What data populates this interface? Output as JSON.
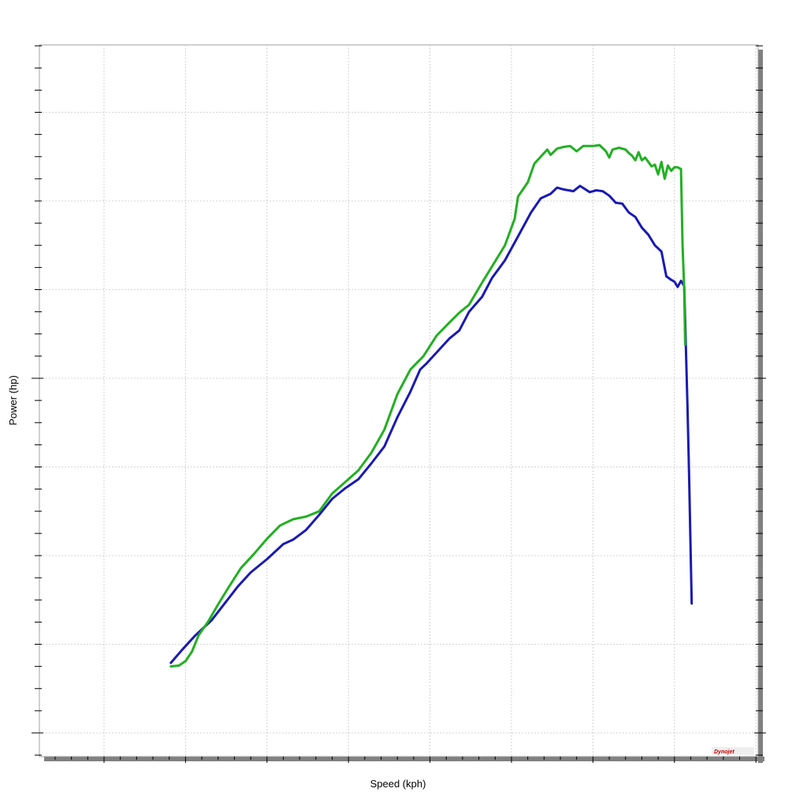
{
  "chart_data": {
    "type": "line",
    "title": "",
    "xlabel": "Speed (kph)",
    "ylabel": "Power (hp)",
    "xlim": [
      0,
      200
    ],
    "ylim": [
      0,
      80
    ],
    "grid": true,
    "x_major_step": 25,
    "y_major_step": 10,
    "x_minor_step": 5,
    "y_minor_step": 2.5,
    "tick_labels_visible": false,
    "logo_text": "Dynojet",
    "series": [
      {
        "color": "#1a1ab4",
        "points": [
          [
            20.5,
            7.9
          ],
          [
            24,
            9.4
          ],
          [
            28,
            11.0
          ],
          [
            33,
            12.7
          ],
          [
            37,
            14.6
          ],
          [
            41,
            16.5
          ],
          [
            45,
            18.1
          ],
          [
            50,
            19.6
          ],
          [
            55,
            21.3
          ],
          [
            58,
            21.8
          ],
          [
            62,
            22.9
          ],
          [
            66,
            24.6
          ],
          [
            70,
            26.4
          ],
          [
            74,
            27.6
          ],
          [
            78,
            28.6
          ],
          [
            82,
            30.4
          ],
          [
            86,
            32.3
          ],
          [
            90,
            35.6
          ],
          [
            94,
            38.5
          ],
          [
            97,
            41.0
          ],
          [
            99,
            41.7
          ],
          [
            102,
            42.9
          ],
          [
            106,
            44.5
          ],
          [
            109,
            45.4
          ],
          [
            112,
            47.5
          ],
          [
            116,
            49.2
          ],
          [
            119,
            51.3
          ],
          [
            123,
            53.3
          ],
          [
            127,
            56.0
          ],
          [
            131,
            58.7
          ],
          [
            134,
            60.3
          ],
          [
            137,
            60.8
          ],
          [
            139,
            61.5
          ],
          [
            141,
            61.3
          ],
          [
            144,
            61.1
          ],
          [
            146,
            61.7
          ],
          [
            149,
            61.0
          ],
          [
            151,
            61.2
          ],
          [
            153,
            61.1
          ],
          [
            155,
            60.6
          ],
          [
            157,
            59.8
          ],
          [
            159,
            59.7
          ],
          [
            161,
            58.7
          ],
          [
            163,
            58.2
          ],
          [
            165,
            57.0
          ],
          [
            167,
            56.2
          ],
          [
            169,
            55.0
          ],
          [
            171,
            54.3
          ],
          [
            172.5,
            51.5
          ],
          [
            174,
            51.1
          ],
          [
            175,
            50.9
          ],
          [
            176,
            50.3
          ],
          [
            177,
            51.0
          ],
          [
            178,
            50.4
          ],
          [
            179,
            37.0
          ],
          [
            179.5,
            29.0
          ],
          [
            180.3,
            14.6
          ]
        ]
      },
      {
        "color": "#22b022",
        "points": [
          [
            20.5,
            7.5
          ],
          [
            23,
            7.6
          ],
          [
            25,
            8.1
          ],
          [
            27,
            9.2
          ],
          [
            29,
            11.0
          ],
          [
            32,
            12.6
          ],
          [
            35,
            14.5
          ],
          [
            38,
            16.3
          ],
          [
            42,
            18.6
          ],
          [
            46,
            20.2
          ],
          [
            50,
            21.9
          ],
          [
            54,
            23.4
          ],
          [
            58,
            24.1
          ],
          [
            62,
            24.4
          ],
          [
            66,
            25.0
          ],
          [
            70,
            27.0
          ],
          [
            74,
            28.3
          ],
          [
            78,
            29.6
          ],
          [
            82,
            31.6
          ],
          [
            86,
            34.2
          ],
          [
            90,
            38.2
          ],
          [
            94,
            41.0
          ],
          [
            98,
            42.5
          ],
          [
            102,
            44.8
          ],
          [
            106,
            46.3
          ],
          [
            109,
            47.4
          ],
          [
            112,
            48.3
          ],
          [
            116,
            50.8
          ],
          [
            119,
            52.6
          ],
          [
            123,
            55.0
          ],
          [
            126,
            58.0
          ],
          [
            127,
            60.5
          ],
          [
            130,
            62.1
          ],
          [
            132,
            64.2
          ],
          [
            134,
            65.0
          ],
          [
            136,
            65.8
          ],
          [
            137,
            65.2
          ],
          [
            139,
            65.9
          ],
          [
            141,
            66.1
          ],
          [
            143,
            66.2
          ],
          [
            145,
            65.6
          ],
          [
            147,
            66.2
          ],
          [
            150,
            66.2
          ],
          [
            152,
            66.3
          ],
          [
            154,
            65.6
          ],
          [
            155,
            64.9
          ],
          [
            156,
            65.8
          ],
          [
            158,
            66.0
          ],
          [
            160,
            65.8
          ],
          [
            161,
            65.4
          ],
          [
            162,
            65.1
          ],
          [
            163,
            64.6
          ],
          [
            164,
            65.5
          ],
          [
            165,
            64.6
          ],
          [
            166,
            64.9
          ],
          [
            167,
            64.4
          ],
          [
            168,
            63.9
          ],
          [
            169,
            64.1
          ],
          [
            170,
            63.0
          ],
          [
            171,
            64.4
          ],
          [
            172,
            62.5
          ],
          [
            173,
            64.0
          ],
          [
            174,
            63.4
          ],
          [
            175,
            63.8
          ],
          [
            176,
            63.8
          ],
          [
            177,
            63.6
          ],
          [
            177.5,
            55.0
          ],
          [
            178,
            50.0
          ],
          [
            178.3,
            43.8
          ]
        ]
      }
    ]
  }
}
